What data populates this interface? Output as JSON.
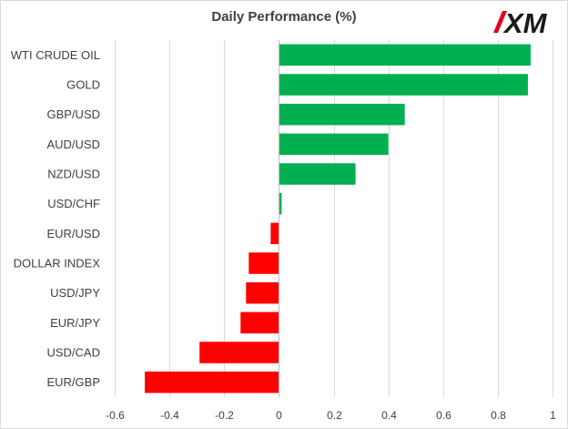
{
  "chart_data": {
    "type": "bar",
    "orientation": "horizontal",
    "title": "Daily Performance  (%)",
    "categories": [
      "WTI CRUDE OIL",
      "GOLD",
      "GBP/USD",
      "AUD/USD",
      "NZD/USD",
      "USD/CHF",
      "EUR/USD",
      "DOLLAR INDEX",
      "USD/JPY",
      "EUR/JPY",
      "USD/CAD",
      "EUR/GBP"
    ],
    "values": [
      0.92,
      0.91,
      0.46,
      0.4,
      0.28,
      0.01,
      -0.03,
      -0.11,
      -0.12,
      -0.14,
      -0.29,
      -0.49
    ],
    "xlim": [
      -0.6,
      1
    ],
    "xticks": [
      "-0.6",
      "-0.4",
      "-0.2",
      "0",
      "0.2",
      "0.4",
      "0.6",
      "0.8",
      "1"
    ],
    "xtick_values": [
      -0.6,
      -0.4,
      -0.2,
      0,
      0.2,
      0.4,
      0.6,
      0.8,
      1
    ],
    "grid": true,
    "legend": false,
    "colors": {
      "positive": "#00b050",
      "negative": "#ff0000",
      "grid": "#d9d9d9",
      "text": "#404040"
    }
  },
  "logo": {
    "text": "XM",
    "accent_color": "#e3001b",
    "text_color": "#1a1a1a"
  }
}
